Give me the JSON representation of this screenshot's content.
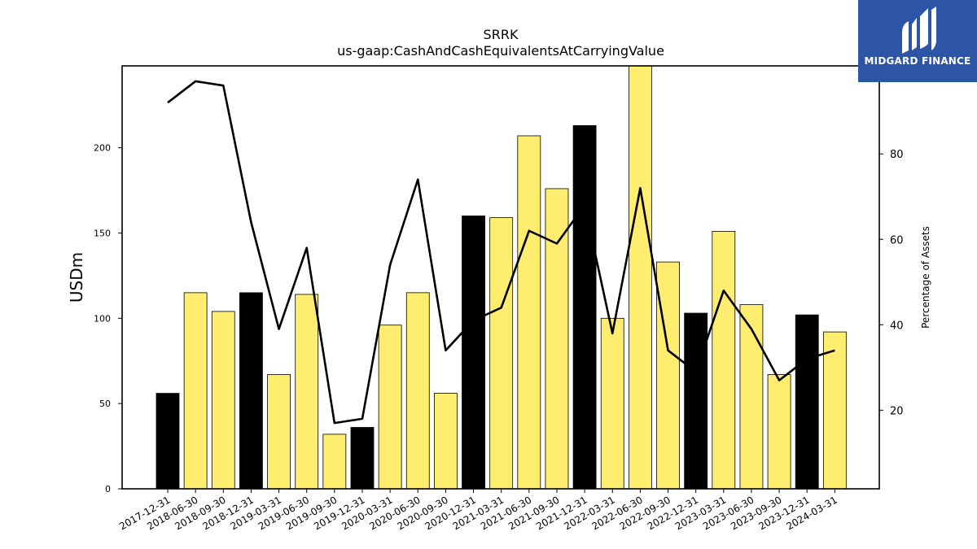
{
  "logo": {
    "text": "MIDGARD FINANCE",
    "icon": "midgard-logo-icon",
    "color": "#2d55a6"
  },
  "chart_data": {
    "type": "bar",
    "title": "SRRK",
    "subtitle": "us-gaap:CashAndCashEquivalentsAtCarryingValue",
    "ylabel": "USDm",
    "y2label": "Percentage of Assets",
    "ylim": [
      0,
      248
    ],
    "y2lim": [
      1.6,
      100.6
    ],
    "yticks": [
      0,
      50,
      100,
      150,
      200
    ],
    "y2ticks": [
      20,
      40,
      60,
      80
    ],
    "legend": "none",
    "grid": false,
    "categories": [
      "2017-12-31",
      "2018-06-30",
      "2018-09-30",
      "2018-12-31",
      "2019-03-31",
      "2019-06-30",
      "2019-09-30",
      "2019-12-31",
      "2020-03-31",
      "2020-06-30",
      "2020-09-30",
      "2020-12-31",
      "2021-03-31",
      "2021-06-30",
      "2021-09-30",
      "2021-12-31",
      "2022-03-31",
      "2022-06-30",
      "2022-09-30",
      "2022-12-31",
      "2023-03-31",
      "2023-06-30",
      "2023-09-30",
      "2023-12-31",
      "2024-03-31"
    ],
    "series": [
      {
        "type": "bar",
        "values": [
          56,
          115,
          104,
          115,
          67,
          114,
          32,
          36,
          96,
          115,
          56,
          160,
          159,
          207,
          176,
          213,
          100,
          249,
          133,
          103,
          151,
          108,
          67,
          102,
          92
        ],
        "fiscal_year_end": [
          true,
          false,
          false,
          true,
          false,
          false,
          false,
          true,
          false,
          false,
          false,
          true,
          false,
          false,
          false,
          true,
          false,
          false,
          false,
          true,
          false,
          false,
          false,
          true,
          false
        ],
        "color_year_end": "#000000",
        "color_quarter": "#ffed6f"
      },
      {
        "type": "line",
        "axis": "right",
        "color": "#000000",
        "values": [
          92,
          97,
          96,
          64,
          39,
          58,
          17,
          18,
          54,
          74,
          34,
          41,
          44,
          62,
          59,
          68,
          38,
          72,
          34,
          29,
          48,
          39,
          27,
          32,
          34
        ]
      }
    ]
  }
}
